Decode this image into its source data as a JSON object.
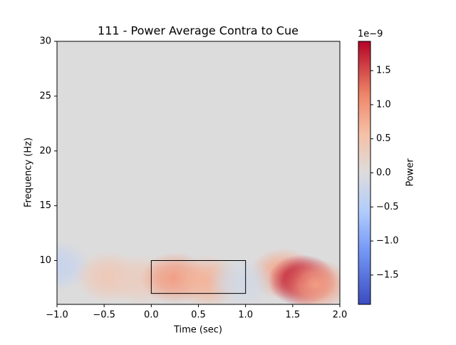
{
  "chart_data": {
    "type": "heatmap",
    "title": "111 - Power Average Contra to Cue",
    "x_label": "Time (sec)",
    "y_label": "Frequency (Hz)",
    "colorbar_label": "Power",
    "colorbar_offset": "1e−9",
    "xlim": [
      -1,
      2
    ],
    "ylim": [
      6,
      30
    ],
    "xticks": [
      {
        "value": -1,
        "label": "−1.0"
      },
      {
        "value": -0.5,
        "label": "−0.5"
      },
      {
        "value": 0,
        "label": "0.0"
      },
      0.5,
      {
        "value": 1,
        "label": "1.0"
      },
      1.5,
      {
        "value": 2,
        "label": "2.0"
      }
    ],
    "yticks": [
      10,
      15,
      20,
      25,
      30
    ],
    "clim": [
      -1.93,
      1.93
    ],
    "cticks": [
      {
        "value": -1.5,
        "label": "−1.5"
      },
      {
        "value": -1,
        "label": "−1.0"
      },
      {
        "value": -0.5,
        "label": "−0.5"
      },
      {
        "value": 0,
        "label": "0.0"
      },
      0.5,
      {
        "value": 1,
        "label": "1.0"
      },
      1.5
    ],
    "blobs": {
      "x": [
        -1.0,
        -0.45,
        -0.1,
        0.25,
        0.6,
        1.4,
        1.6,
        1.75,
        0.95
      ],
      "y": [
        9.5,
        8.5,
        8.2,
        8.4,
        8.1,
        8.8,
        8.2,
        7.8,
        8.0
      ],
      "values": [
        -0.3,
        0.4,
        0.3,
        0.9,
        0.7,
        0.8,
        1.9,
        0.9,
        -0.15
      ]
    },
    "box": {
      "x": [
        0,
        1
      ],
      "y": [
        7,
        10
      ]
    }
  }
}
